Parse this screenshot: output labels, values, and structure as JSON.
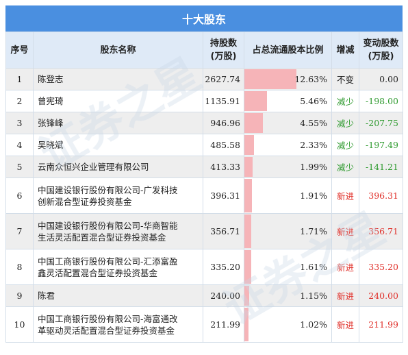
{
  "title": "十大股东",
  "headers": {
    "index": "序号",
    "name": "股东名称",
    "holding_line1": "持股数",
    "holding_line2": "(万股)",
    "ratio": "占总流通股本比例",
    "change": "增减",
    "delta_line1": "变动股数",
    "delta_line2": "(万股)"
  },
  "colors": {
    "header_bar": "#4a8fe0",
    "ratio_bar": "#f6b4b8",
    "decrease": "#2e9a2e",
    "new": "#e0302a"
  },
  "rows": [
    {
      "index": "1",
      "name_lines": [
        "陈登志"
      ],
      "holding": "2627.74",
      "ratio": "12.63%",
      "ratio_value": 12.63,
      "change": "不变",
      "change_type": "none",
      "delta": "0.00"
    },
    {
      "index": "2",
      "name_lines": [
        "曾宪琦"
      ],
      "holding": "1135.91",
      "ratio": "5.46%",
      "ratio_value": 5.46,
      "change": "减少",
      "change_type": "dec",
      "delta": "-198.00"
    },
    {
      "index": "3",
      "name_lines": [
        "张锋峰"
      ],
      "holding": "946.96",
      "ratio": "4.55%",
      "ratio_value": 4.55,
      "change": "减少",
      "change_type": "dec",
      "delta": "-207.75"
    },
    {
      "index": "4",
      "name_lines": [
        "吴晓斌"
      ],
      "holding": "485.58",
      "ratio": "2.33%",
      "ratio_value": 2.33,
      "change": "减少",
      "change_type": "dec",
      "delta": "-197.49"
    },
    {
      "index": "5",
      "name_lines": [
        "云南众恒兴企业管理有限公司"
      ],
      "holding": "413.33",
      "ratio": "1.99%",
      "ratio_value": 1.99,
      "change": "减少",
      "change_type": "dec",
      "delta": "-141.21"
    },
    {
      "index": "6",
      "name_lines": [
        "中国建设银行股份有限公司-广发科技",
        "创新混合型证券投资基金"
      ],
      "holding": "396.31",
      "ratio": "1.91%",
      "ratio_value": 1.91,
      "change": "新进",
      "change_type": "new",
      "delta": "396.31"
    },
    {
      "index": "7",
      "name_lines": [
        "中国建设银行股份有限公司-华商智能",
        "生活灵活配置混合型证券投资基金"
      ],
      "holding": "356.71",
      "ratio": "1.71%",
      "ratio_value": 1.71,
      "change": "新进",
      "change_type": "new",
      "delta": "356.71"
    },
    {
      "index": "8",
      "name_lines": [
        "中国工商银行股份有限公司-汇添富盈",
        "鑫灵活配置混合型证券投资基金"
      ],
      "holding": "335.20",
      "ratio": "1.61%",
      "ratio_value": 1.61,
      "change": "新进",
      "change_type": "new",
      "delta": "335.20"
    },
    {
      "index": "9",
      "name_lines": [
        "陈君"
      ],
      "holding": "240.00",
      "ratio": "1.15%",
      "ratio_value": 1.15,
      "change": "新进",
      "change_type": "new",
      "delta": "240.00"
    },
    {
      "index": "10",
      "name_lines": [
        "中国工商银行股份有限公司-海富通改",
        "革驱动灵活配置混合型证券投资基金"
      ],
      "holding": "211.99",
      "ratio": "1.02%",
      "ratio_value": 1.02,
      "change": "新进",
      "change_type": "new",
      "delta": "211.99"
    }
  ]
}
